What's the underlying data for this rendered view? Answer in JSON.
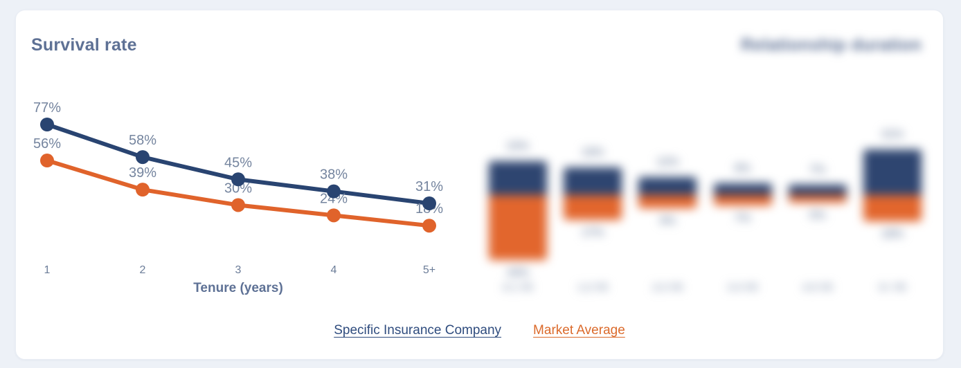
{
  "card": {
    "left_chart_title": "Survival rate",
    "right_chart_title": "Relationship duration",
    "right_section_blurred": true
  },
  "legend": {
    "items": [
      {
        "label": "Specific Insurance Company",
        "color": "#2F4C7E"
      },
      {
        "label": "Market Average",
        "color": "#DB6A2B"
      }
    ]
  },
  "colors": {
    "navy": "#294471",
    "orange": "#E0632B",
    "bar_navy": "#2E4570",
    "bar_orange": "#E2662D",
    "data_label": "#74849E",
    "axis_text": "#6B7C98",
    "title_text": "#5E7195",
    "page_background": "#EDF1F7",
    "card_background": "#FFFFFF"
  },
  "chart_data": [
    {
      "type": "line",
      "title": "Survival rate",
      "xlabel": "Tenure (years)",
      "ylabel": "",
      "unit": "%",
      "categories": [
        "1",
        "2",
        "3",
        "4",
        "5+"
      ],
      "series": [
        {
          "name": "Specific Insurance Company",
          "color": "#294471",
          "values": [
            77,
            58,
            45,
            38,
            31
          ],
          "labels": [
            "77%",
            "58%",
            "45%",
            "38%",
            "31%"
          ]
        },
        {
          "name": "Market Average",
          "color": "#E0632B",
          "values": [
            56,
            39,
            30,
            24,
            18
          ],
          "labels": [
            "56%",
            "39%",
            "30%",
            "24%",
            "18%"
          ]
        }
      ],
      "data_labels": true,
      "grid": false,
      "legend_position": "bottom"
    },
    {
      "type": "bar",
      "subtype": "diverging-stacked",
      "title": "Relationship duration",
      "blurred": true,
      "unit": "%",
      "categories": [
        "0-1 YR",
        "1-2 YR",
        "2-3 YR",
        "3-4 YR",
        "4-5 YR",
        "5+ YR"
      ],
      "series": [
        {
          "name": "Specific Insurance Company",
          "direction": "up",
          "color": "#2E4570",
          "values": [
            23,
            19,
            12,
            8,
            7,
            31
          ],
          "labels": [
            "23%",
            "19%",
            "12%",
            "8%",
            "7%",
            "31%"
          ]
        },
        {
          "name": "Market Average",
          "direction": "down",
          "color": "#E2662D",
          "values": [
            44,
            17,
            9,
            7,
            5,
            18
          ],
          "labels": [
            "44%",
            "17%",
            "9%",
            "7%",
            "5%",
            "18%"
          ]
        }
      ],
      "data_labels": true,
      "grid": false
    }
  ]
}
